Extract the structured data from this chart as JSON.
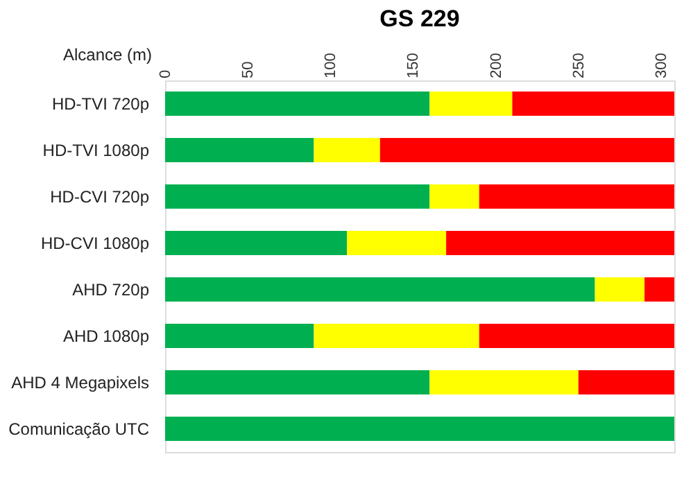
{
  "chart_data": {
    "type": "bar",
    "orientation": "horizontal",
    "stacked": true,
    "title": "GS 229",
    "xlabel": "Alcance (m)",
    "categories": [
      "HD-TVI 720p",
      "HD-TVI 1080p",
      "HD-CVI 720p",
      "HD-CVI 1080p",
      "AHD 720p",
      "AHD 1080p",
      "AHD 4 Megapixels",
      "Comunicação UTC"
    ],
    "series": [
      {
        "color": "#00b050",
        "values": [
          160,
          90,
          160,
          110,
          260,
          90,
          160,
          308
        ]
      },
      {
        "color": "#ffff00",
        "values": [
          50,
          40,
          30,
          60,
          30,
          100,
          90,
          0
        ]
      },
      {
        "color": "#ff0000",
        "values": [
          98,
          178,
          118,
          138,
          18,
          118,
          58,
          0
        ]
      }
    ],
    "xlim": [
      0,
      308
    ],
    "xticks": [
      0,
      50,
      100,
      150,
      200,
      250,
      300
    ],
    "grid": false,
    "legend": false
  }
}
